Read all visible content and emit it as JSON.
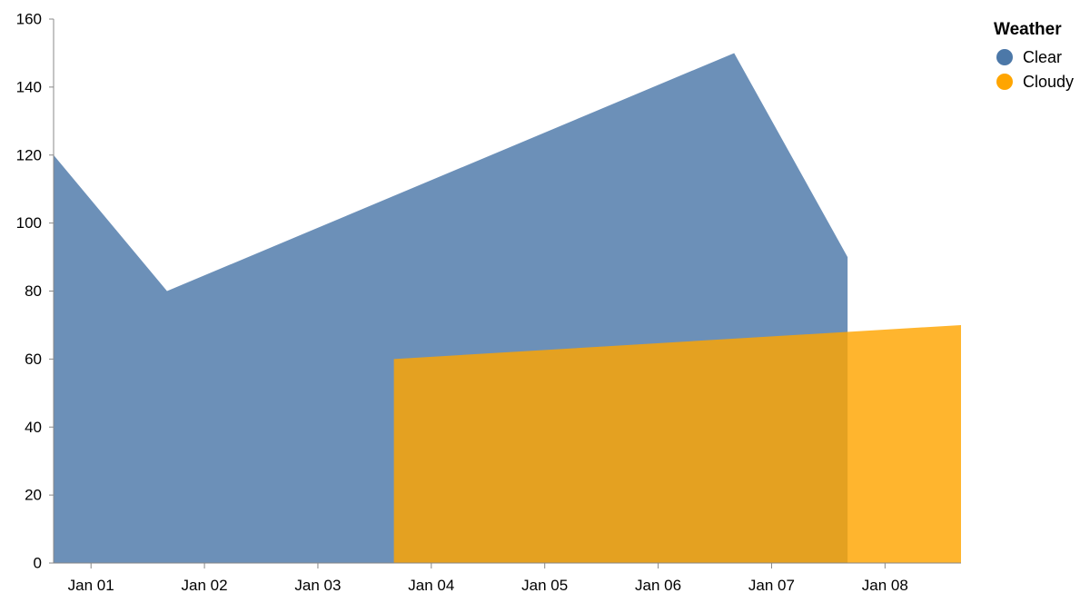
{
  "chart_data": {
    "type": "area",
    "title": "",
    "xlabel": "",
    "ylabel": "",
    "ylim": [
      0,
      160
    ],
    "yticks": [
      0,
      20,
      40,
      60,
      80,
      100,
      120,
      140,
      160
    ],
    "xticks": [
      "Jan 01",
      "Jan 02",
      "Jan 03",
      "Jan 04",
      "Jan 05",
      "Jan 06",
      "Jan 07",
      "Jan 08"
    ],
    "x_domain": [
      "2024-12-31T14:00",
      "2025-01-08T14:00"
    ],
    "grid": false,
    "legend": {
      "title": "Weather",
      "position": "top-right"
    },
    "series": [
      {
        "name": "Clear",
        "color": "#4c78a8",
        "points": [
          {
            "x": "2024-12-31T14:00",
            "y": 120
          },
          {
            "x": "2025-01-01T14:00",
            "y": 80
          },
          {
            "x": "2025-01-06T14:00",
            "y": 150
          },
          {
            "x": "2025-01-07T14:00",
            "y": 90
          }
        ]
      },
      {
        "name": "Cloudy",
        "color": "#ffa500",
        "points": [
          {
            "x": "2025-01-03T14:00",
            "y": 60
          },
          {
            "x": "2025-01-08T14:00",
            "y": 70
          }
        ]
      }
    ]
  }
}
